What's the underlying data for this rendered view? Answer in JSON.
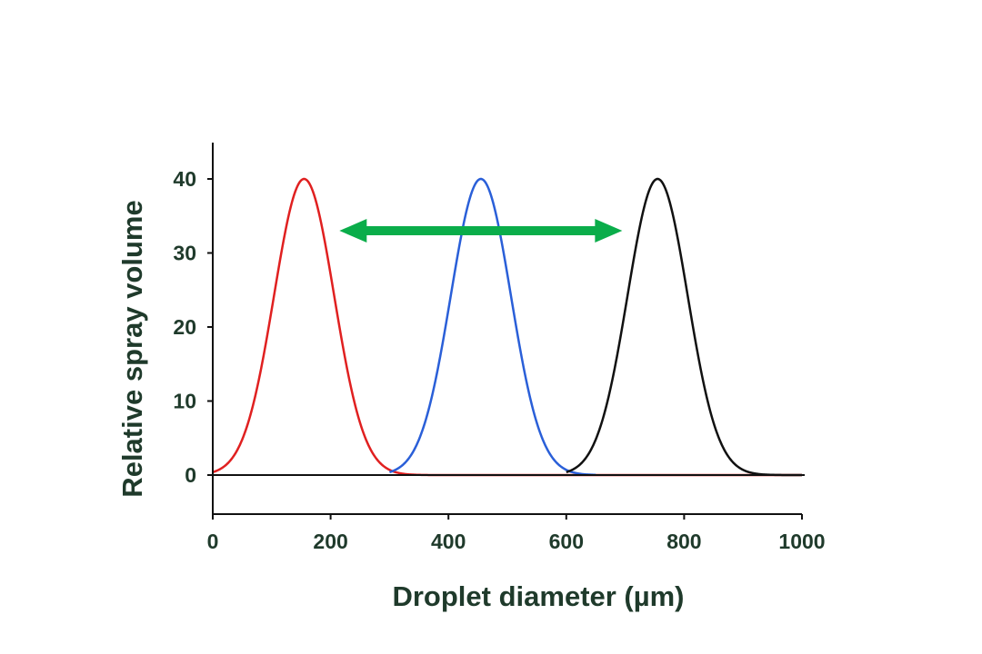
{
  "chart_data": {
    "type": "line",
    "title": "",
    "xlabel": "Droplet diameter (µm)",
    "ylabel": "Relative spray volume",
    "xlim": [
      0,
      1000
    ],
    "ylim": [
      -5,
      45
    ],
    "x_ticks": [
      "0",
      "200",
      "400",
      "600",
      "800",
      "1000"
    ],
    "y_ticks": [
      "0",
      "10",
      "20",
      "30",
      "40"
    ],
    "grid": false,
    "legend": "none",
    "series": [
      {
        "color": "#e02020",
        "shape": "gaussian",
        "peak_x": 155,
        "peak_y": 40,
        "x": [
          0,
          50,
          100,
          130,
          155,
          180,
          210,
          260,
          300,
          350,
          400,
          1000
        ],
        "y": [
          0.8,
          6.3,
          24.1,
          36.2,
          40,
          36.2,
          22.9,
          5.2,
          0.9,
          0,
          0,
          0
        ]
      },
      {
        "color": "#2a5fd8",
        "shape": "gaussian",
        "peak_x": 455,
        "peak_y": 40,
        "x": [
          300,
          350,
          400,
          430,
          455,
          480,
          510,
          560,
          610,
          650
        ],
        "y": [
          0.8,
          6.3,
          24.1,
          36.2,
          40,
          36.2,
          22.9,
          5.2,
          0.7,
          0.1
        ]
      },
      {
        "color": "#111111",
        "shape": "gaussian",
        "peak_x": 755,
        "peak_y": 40,
        "x": [
          600,
          650,
          700,
          730,
          755,
          780,
          810,
          860,
          910,
          960,
          1000
        ],
        "y": [
          0.8,
          6.3,
          24.1,
          36.2,
          40,
          36.2,
          22.9,
          5.2,
          0.7,
          0.1,
          0
        ]
      }
    ],
    "annotations": [
      {
        "type": "double-arrow",
        "color": "#0aad4a",
        "x_start": 215,
        "x_end": 695,
        "y": 33
      }
    ]
  }
}
